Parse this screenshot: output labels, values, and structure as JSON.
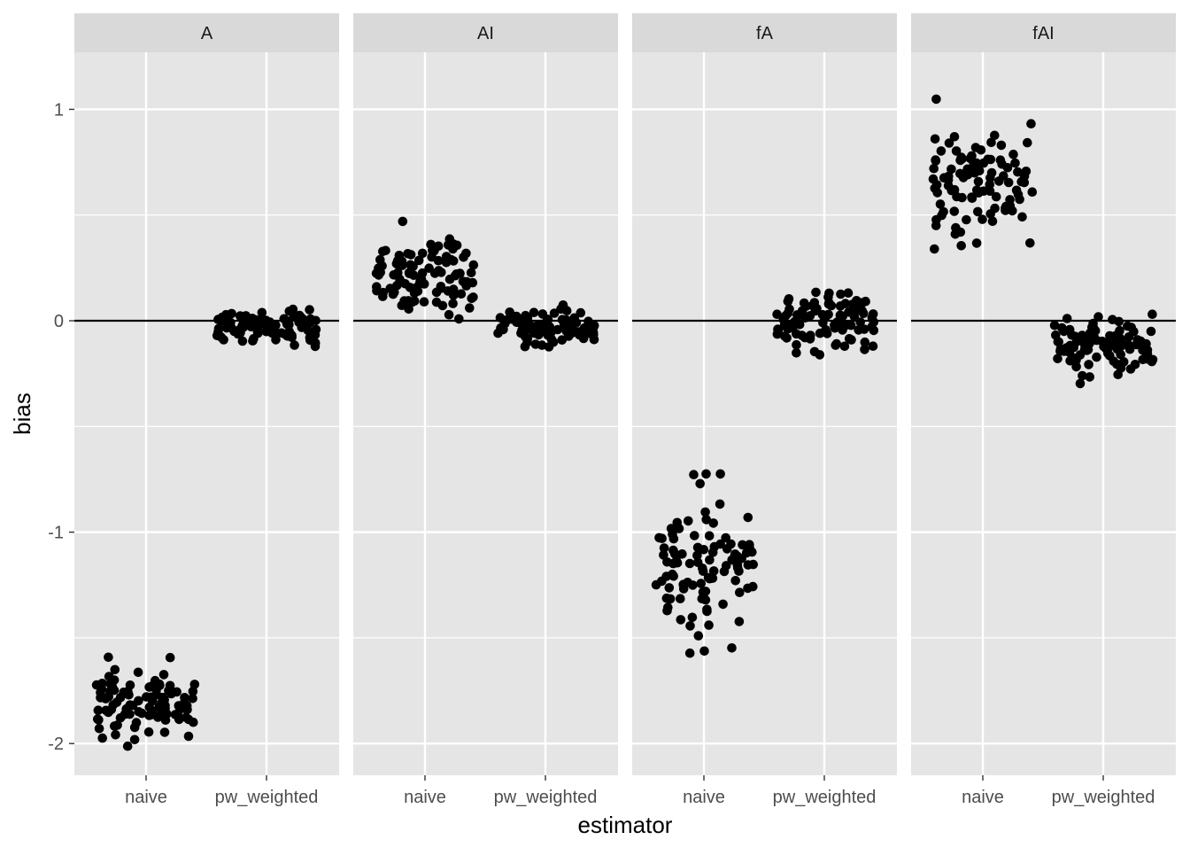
{
  "chart_data": {
    "type": "scatter",
    "facet_labels": [
      "A",
      "AI",
      "fA",
      "fAI"
    ],
    "categories": [
      "naive",
      "pw_weighted"
    ],
    "xlabel": "estimator",
    "ylabel": "bias",
    "ylim": [
      -2.15,
      1.27
    ],
    "y_ticks": [
      -2,
      -1,
      0,
      1
    ],
    "y_tick_labels": [
      "-2",
      "-1",
      "0",
      "1"
    ],
    "reference_line": 0,
    "grid": true,
    "legend": "none",
    "colors": {
      "panel_background": "#e5e5e5",
      "strip_background": "#d9d9d9",
      "grid": "#ffffff",
      "point": "#000000",
      "reference_line": "#000000"
    },
    "facets": [
      {
        "label": "A",
        "series": [
          {
            "category": "naive",
            "center": -1.8,
            "spread": 0.18
          },
          {
            "category": "pw_weighted",
            "center": -0.03,
            "spread": 0.09
          }
        ]
      },
      {
        "label": "AI",
        "series": [
          {
            "category": "naive",
            "center": 0.21,
            "spread": 0.22
          },
          {
            "category": "pw_weighted",
            "center": -0.03,
            "spread": 0.09
          }
        ]
      },
      {
        "label": "fA",
        "series": [
          {
            "category": "naive",
            "center": -1.15,
            "spread": 0.36
          },
          {
            "category": "pw_weighted",
            "center": -0.01,
            "spread": 0.17
          }
        ]
      },
      {
        "label": "fAI",
        "series": [
          {
            "category": "naive",
            "center": 0.68,
            "spread": 0.32
          },
          {
            "category": "pw_weighted",
            "center": -0.12,
            "spread": 0.15
          }
        ]
      }
    ]
  }
}
